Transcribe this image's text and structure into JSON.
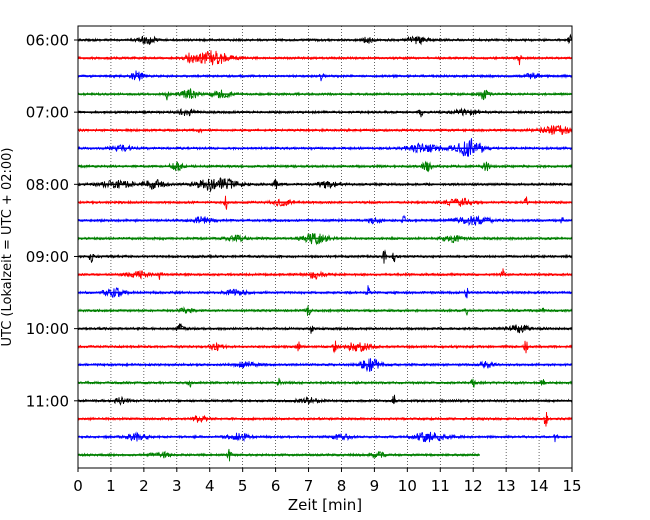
{
  "chart_data": {
    "type": "line",
    "subtype": "helicorder",
    "xlabel": "Zeit  [min]",
    "ylabel": "UTC (Lokalzeit = UTC + 02:00)",
    "xlim": [
      0,
      15
    ],
    "x_ticks": [
      0,
      1,
      2,
      3,
      4,
      5,
      6,
      7,
      8,
      9,
      10,
      11,
      12,
      13,
      14,
      15
    ],
    "y_tick_labels": [
      "06:00",
      "07:00",
      "08:00",
      "09:00",
      "10:00",
      "11:00"
    ],
    "y_tick_trace_index": [
      0,
      4,
      8,
      12,
      16,
      20
    ],
    "grid": "vertical dotted",
    "trace_colors": [
      "#000000",
      "#ff0000",
      "#0000ff",
      "#008000"
    ],
    "series": [
      {
        "x_end": 15,
        "events": [
          [
            2.1,
            0.25,
            0.6
          ],
          [
            8.8,
            0.15,
            0.4
          ],
          [
            10.3,
            0.3,
            0.5
          ],
          [
            15.0,
            0.1,
            0.8
          ]
        ]
      },
      {
        "x_end": 15,
        "events": [
          [
            3.4,
            0.15,
            0.6
          ],
          [
            4.1,
            0.5,
            1.0
          ],
          [
            13.4,
            0.05,
            1.0
          ]
        ]
      },
      {
        "x_end": 15,
        "events": [
          [
            1.8,
            0.2,
            0.7
          ],
          [
            7.4,
            0.05,
            0.9
          ],
          [
            13.8,
            0.2,
            0.4
          ]
        ]
      },
      {
        "x_end": 15,
        "events": [
          [
            2.7,
            0.05,
            0.8
          ],
          [
            3.4,
            0.25,
            0.7
          ],
          [
            4.4,
            0.3,
            0.5
          ],
          [
            12.3,
            0.15,
            0.7
          ]
        ]
      },
      {
        "x_end": 15,
        "events": [
          [
            3.3,
            0.2,
            0.6
          ],
          [
            10.4,
            0.05,
            1.0
          ],
          [
            11.8,
            0.4,
            0.4
          ]
        ]
      },
      {
        "x_end": 15,
        "events": [
          [
            3.7,
            0.05,
            0.6
          ],
          [
            14.5,
            0.5,
            0.6
          ]
        ]
      },
      {
        "x_end": 15,
        "events": [
          [
            1.3,
            0.3,
            0.4
          ],
          [
            10.5,
            0.5,
            0.6
          ],
          [
            11.9,
            0.4,
            1.3
          ]
        ]
      },
      {
        "x_end": 15,
        "events": [
          [
            3.0,
            0.2,
            0.5
          ],
          [
            10.6,
            0.15,
            0.6
          ],
          [
            12.4,
            0.1,
            0.6
          ]
        ]
      },
      {
        "x_end": 15,
        "events": [
          [
            1.2,
            0.5,
            0.5
          ],
          [
            2.3,
            0.3,
            0.6
          ],
          [
            4.2,
            0.6,
            0.9
          ],
          [
            6.0,
            0.05,
            0.8
          ],
          [
            7.6,
            0.3,
            0.5
          ]
        ]
      },
      {
        "x_end": 15,
        "events": [
          [
            4.5,
            0.05,
            1.0
          ],
          [
            6.2,
            0.3,
            0.4
          ],
          [
            11.6,
            0.4,
            0.5
          ],
          [
            13.6,
            0.05,
            0.8
          ]
        ]
      },
      {
        "x_end": 15,
        "events": [
          [
            3.8,
            0.3,
            0.5
          ],
          [
            9.0,
            0.2,
            0.4
          ],
          [
            9.9,
            0.05,
            0.7
          ],
          [
            12.0,
            0.5,
            0.6
          ],
          [
            14.7,
            0.05,
            0.8
          ]
        ]
      },
      {
        "x_end": 15,
        "events": [
          [
            4.8,
            0.3,
            0.4
          ],
          [
            7.2,
            0.4,
            0.7
          ],
          [
            11.4,
            0.3,
            0.5
          ]
        ]
      },
      {
        "x_end": 15,
        "events": [
          [
            0.4,
            0.05,
            1.0
          ],
          [
            9.3,
            0.05,
            1.0
          ],
          [
            9.6,
            0.05,
            0.7
          ]
        ]
      },
      {
        "x_end": 15,
        "events": [
          [
            1.8,
            0.3,
            0.5
          ],
          [
            2.5,
            0.05,
            0.9
          ],
          [
            7.2,
            0.3,
            0.5
          ],
          [
            12.9,
            0.05,
            0.8
          ]
        ]
      },
      {
        "x_end": 15,
        "events": [
          [
            1.1,
            0.3,
            0.6
          ],
          [
            4.8,
            0.3,
            0.4
          ],
          [
            8.8,
            0.05,
            1.1
          ],
          [
            11.8,
            0.05,
            0.9
          ]
        ]
      },
      {
        "x_end": 15,
        "events": [
          [
            3.3,
            0.2,
            0.4
          ],
          [
            7.0,
            0.05,
            0.9
          ],
          [
            11.8,
            0.05,
            0.6
          ],
          [
            14.1,
            0.05,
            0.6
          ]
        ]
      },
      {
        "x_end": 15,
        "events": [
          [
            3.1,
            0.1,
            0.6
          ],
          [
            7.1,
            0.05,
            1.0
          ],
          [
            13.4,
            0.3,
            0.5
          ]
        ]
      },
      {
        "x_end": 15,
        "events": [
          [
            4.2,
            0.2,
            0.5
          ],
          [
            6.7,
            0.05,
            0.7
          ],
          [
            7.8,
            0.05,
            1.0
          ],
          [
            8.5,
            0.4,
            0.6
          ],
          [
            13.6,
            0.05,
            1.0
          ]
        ]
      },
      {
        "x_end": 15,
        "events": [
          [
            5.1,
            0.3,
            0.4
          ],
          [
            8.9,
            0.3,
            0.8
          ],
          [
            12.4,
            0.2,
            0.4
          ]
        ]
      },
      {
        "x_end": 15,
        "events": [
          [
            3.4,
            0.05,
            1.1
          ],
          [
            6.1,
            0.05,
            0.6
          ],
          [
            12.0,
            0.05,
            1.0
          ],
          [
            14.1,
            0.05,
            0.7
          ]
        ]
      },
      {
        "x_end": 15,
        "events": [
          [
            1.3,
            0.2,
            0.4
          ],
          [
            7.0,
            0.3,
            0.4
          ],
          [
            9.6,
            0.05,
            0.9
          ]
        ]
      },
      {
        "x_end": 15,
        "events": [
          [
            3.7,
            0.2,
            0.5
          ],
          [
            14.2,
            0.05,
            1.1
          ]
        ]
      },
      {
        "x_end": 15,
        "events": [
          [
            1.8,
            0.3,
            0.5
          ],
          [
            4.9,
            0.3,
            0.5
          ],
          [
            8.0,
            0.3,
            0.4
          ],
          [
            10.7,
            0.5,
            0.6
          ],
          [
            14.5,
            0.05,
            0.8
          ]
        ]
      },
      {
        "x_end": 12.2,
        "events": [
          [
            2.5,
            0.3,
            0.4
          ],
          [
            4.6,
            0.05,
            0.9
          ],
          [
            9.1,
            0.2,
            0.4
          ]
        ]
      }
    ]
  }
}
